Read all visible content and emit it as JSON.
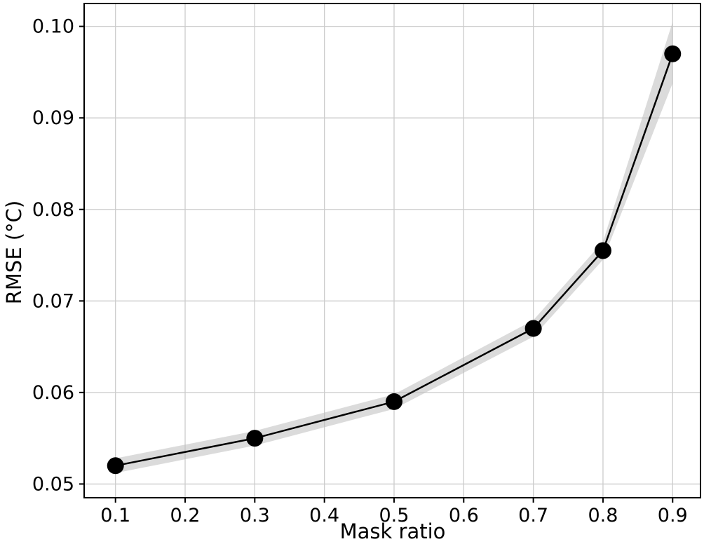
{
  "chart_data": {
    "type": "line",
    "title": "",
    "xlabel": "Mask ratio",
    "ylabel": "RMSE (°C)",
    "x": [
      0.1,
      0.3,
      0.5,
      0.7,
      0.8,
      0.9
    ],
    "series": [
      {
        "name": "RMSE",
        "values": [
          0.052,
          0.055,
          0.059,
          0.067,
          0.0755,
          0.097
        ],
        "band_lower": [
          0.0512,
          0.0542,
          0.0582,
          0.0661,
          0.0745,
          0.0938
        ],
        "band_upper": [
          0.0528,
          0.0558,
          0.0598,
          0.0679,
          0.0765,
          0.1005
        ]
      }
    ],
    "xlim": [
      0.055,
      0.94
    ],
    "ylim": [
      0.0485,
      0.1025
    ],
    "x_ticks": {
      "values": [
        0.1,
        0.2,
        0.3,
        0.4,
        0.5,
        0.6,
        0.7,
        0.8,
        0.9
      ],
      "labels": [
        "0.1",
        "0.2",
        "0.3",
        "0.4",
        "0.5",
        "0.6",
        "0.7",
        "0.8",
        "0.9"
      ]
    },
    "y_ticks": {
      "values": [
        0.05,
        0.06,
        0.07,
        0.08,
        0.09,
        0.1
      ],
      "labels": [
        "0.05",
        "0.06",
        "0.07",
        "0.08",
        "0.09",
        "0.10"
      ]
    },
    "grid": true,
    "legend": "none",
    "marker_radius": 12,
    "line_width": 2.5,
    "colors": {
      "line": "#000000",
      "marker": "#000000",
      "band": "#bdbdbd",
      "grid": "#cccccc",
      "spine": "#000000",
      "background": "#ffffff"
    }
  }
}
